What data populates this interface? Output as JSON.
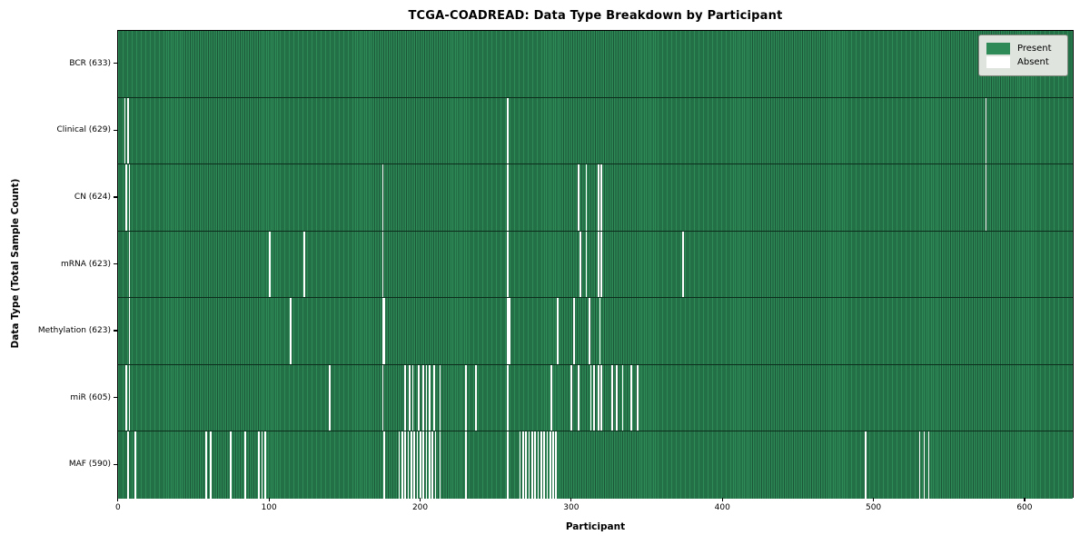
{
  "chart_data": {
    "type": "heatmap",
    "title": "TCGA-COADREAD: Data Type Breakdown by Participant",
    "xlabel": "Participant",
    "ylabel": "Data Type (Total Sample Count)",
    "n_participants": 633,
    "x_ticks": [
      0,
      100,
      200,
      300,
      400,
      500,
      600
    ],
    "grid": false,
    "legend": {
      "position": "upper right",
      "entries": [
        {
          "label": "Present",
          "color": "#2e8b57"
        },
        {
          "label": "Absent",
          "color": "#ffffff"
        }
      ]
    },
    "colors": {
      "present_fill": "#2e8b57",
      "present_edge": "#1b5436",
      "absent_fill": "#ffffff",
      "axis_color": "#000000",
      "legend_bg": "#dfe4df",
      "legend_border": "#83887f"
    },
    "rows": [
      {
        "data_type": "BCR",
        "label": "BCR (633)",
        "total_samples": 633,
        "absent_participants": []
      },
      {
        "data_type": "Clinical",
        "label": "Clinical (629)",
        "total_samples": 629,
        "absent_participants": [
          4,
          6,
          258,
          575
        ]
      },
      {
        "data_type": "CN",
        "label": "CN (624)",
        "total_samples": 624,
        "absent_participants": [
          5,
          7,
          175,
          258,
          305,
          310,
          318,
          320,
          575
        ]
      },
      {
        "data_type": "mRNA",
        "label": "mRNA (623)",
        "total_samples": 623,
        "absent_participants": [
          7,
          100,
          123,
          175,
          258,
          306,
          310,
          318,
          320,
          374
        ]
      },
      {
        "data_type": "Methylation",
        "label": "Methylation (623)",
        "total_samples": 623,
        "absent_participants": [
          7,
          114,
          175,
          176,
          258,
          259,
          291,
          302,
          312,
          319
        ]
      },
      {
        "data_type": "miR",
        "label": "miR (605)",
        "total_samples": 605,
        "absent_participants": [
          5,
          7,
          140,
          175,
          190,
          193,
          195,
          199,
          202,
          204,
          206,
          209,
          213,
          230,
          237,
          258,
          287,
          300,
          305,
          313,
          315,
          318,
          320,
          327,
          330,
          334,
          340,
          344
        ]
      },
      {
        "data_type": "MAF",
        "label": "MAF (590)",
        "total_samples": 590,
        "absent_participants": [
          6,
          11,
          58,
          61,
          74,
          84,
          93,
          95,
          97,
          176,
          186,
          188,
          190,
          192,
          194,
          196,
          198,
          200,
          202,
          204,
          206,
          208,
          210,
          213,
          230,
          258,
          266,
          268,
          270,
          272,
          274,
          276,
          278,
          280,
          282,
          284,
          286,
          288,
          290,
          495,
          531,
          534,
          537
        ]
      }
    ]
  }
}
